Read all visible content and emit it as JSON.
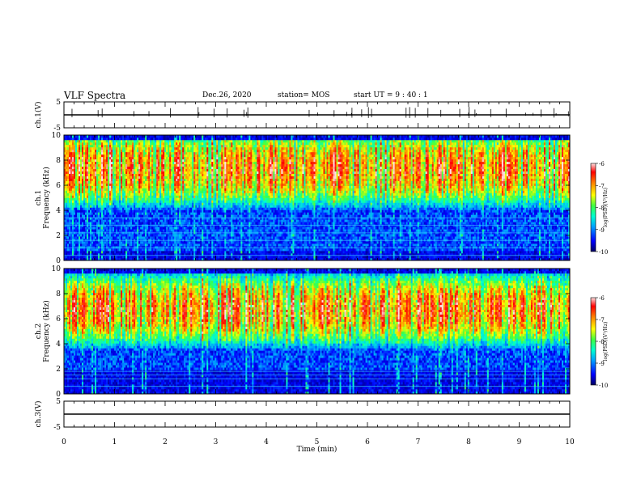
{
  "header": {
    "title": "VLF Spectra",
    "date": "Dec.26, 2020",
    "station": "station= MOS",
    "start": "start  UT =   9 : 40 : 1"
  },
  "colors": {
    "colormap": [
      "#000060",
      "#0000ff",
      "#00a0ff",
      "#00ffd0",
      "#40ff40",
      "#ffff00",
      "#ff8000",
      "#ff0000",
      "#ffe0e0"
    ]
  },
  "chart_data": [
    {
      "type": "line",
      "ylabel": "ch.1(V)",
      "xlim": [
        0,
        10
      ],
      "ylim": [
        -5,
        5
      ],
      "yticks": [
        "5",
        "-5"
      ],
      "baseline": 0
    },
    {
      "type": "heatmap",
      "ylabel": "ch.1\nFrequency (kHz)",
      "xlim": [
        0,
        10
      ],
      "ylim": [
        0,
        10
      ],
      "yticks": [
        "0",
        "2",
        "4",
        "6",
        "8",
        "10"
      ],
      "colorbar": {
        "label": "log(PSD)(V²/Hz)",
        "range": [
          -10,
          -6
        ],
        "ticks": [
          "-6",
          "-7",
          "-8",
          "-9",
          "-10"
        ]
      },
      "strong_band_khz": [
        5.5,
        9.2
      ],
      "line_frequencies_khz": [
        0.4,
        1.0,
        1.6,
        2.2,
        2.8,
        3.4
      ]
    },
    {
      "type": "heatmap",
      "ylabel": "ch.2\nFrequency (kHz)",
      "xlim": [
        0,
        10
      ],
      "ylim": [
        0,
        10
      ],
      "yticks": [
        "0",
        "2",
        "4",
        "6",
        "8",
        "10"
      ],
      "colorbar": {
        "label": "log(PSD)(V²/Hz)",
        "range": [
          -10,
          -6
        ],
        "ticks": [
          "-6",
          "-7",
          "-8",
          "-9",
          "-10"
        ]
      },
      "strong_band_khz": [
        5.0,
        8.5
      ],
      "line_frequencies_khz": [
        0.6,
        1.2,
        1.5,
        1.8
      ]
    },
    {
      "type": "line",
      "ylabel": "ch.3(V)",
      "xlim": [
        0,
        10
      ],
      "ylim": [
        -5,
        5
      ],
      "yticks": [
        "5",
        "-5"
      ],
      "baseline": 0,
      "xlabel": "Time  (min)",
      "xticks": [
        "0",
        "1",
        "2",
        "3",
        "4",
        "5",
        "6",
        "7",
        "8",
        "9",
        "10"
      ]
    }
  ]
}
